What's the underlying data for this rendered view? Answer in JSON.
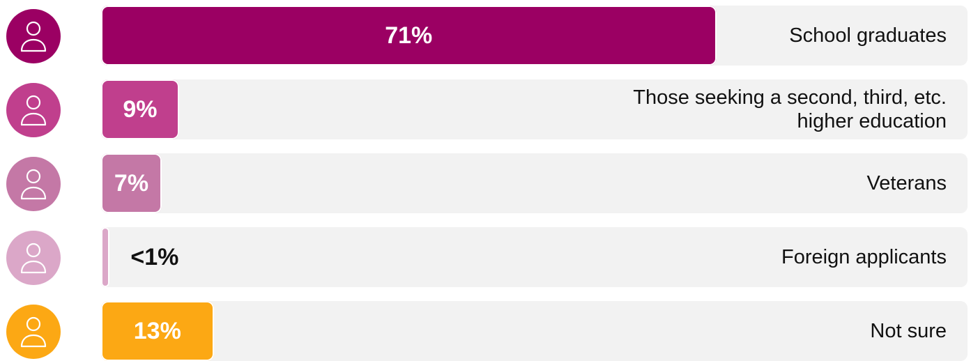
{
  "chart_data": {
    "type": "bar",
    "orientation": "horizontal",
    "categories": [
      "School graduates",
      "Those seeking a second, third, etc. higher education",
      "Veterans",
      "Foreign applicants",
      "Not sure"
    ],
    "values": [
      71,
      9,
      7,
      1,
      13
    ],
    "value_labels": [
      "71%",
      "9%",
      "7%",
      "<1%",
      "13%"
    ],
    "colors": [
      "#9b0063",
      "#c03f8d",
      "#c478a6",
      "#dba7c8",
      "#fca814"
    ],
    "xlim": [
      0,
      100
    ]
  }
}
